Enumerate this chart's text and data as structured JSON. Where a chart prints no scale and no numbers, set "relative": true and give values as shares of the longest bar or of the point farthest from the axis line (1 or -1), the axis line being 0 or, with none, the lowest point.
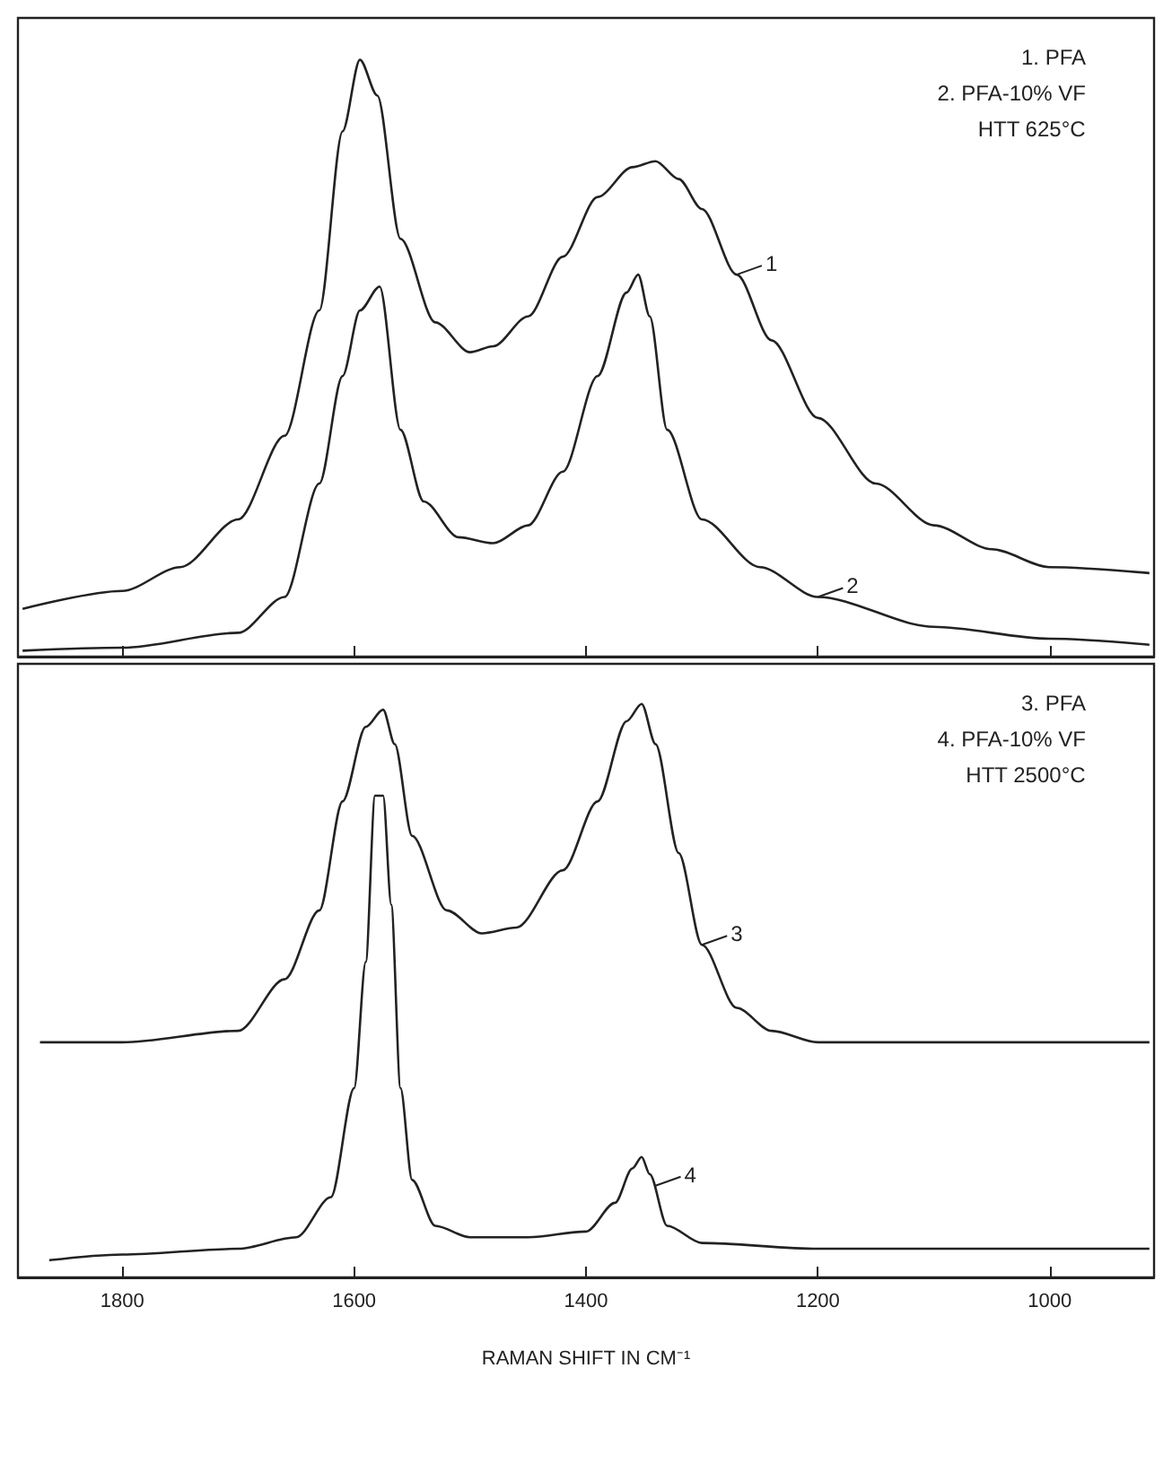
{
  "chart_data": [
    {
      "type": "line",
      "relative": true,
      "tick_labels": false,
      "grid": false,
      "marker": "none",
      "line_style": "solid",
      "xlim": [
        1890,
        910
      ],
      "xticks": [
        1800,
        1600,
        1400,
        1200,
        1000
      ],
      "annotations": [
        "1. PFA",
        "2. PFA-10% VF",
        "HTT 625°C",
        {
          "text": "1",
          "x": 1270,
          "y": 0.64
        },
        {
          "text": "2",
          "x": 1200,
          "y": 0.1
        }
      ],
      "series": [
        {
          "color": "#222222",
          "x": [
            1886,
            1800,
            1750,
            1700,
            1660,
            1630,
            1610,
            1595,
            1580,
            1560,
            1530,
            1500,
            1480,
            1450,
            1420,
            1390,
            1360,
            1340,
            1320,
            1300,
            1270,
            1240,
            1200,
            1150,
            1100,
            1050,
            1000,
            914
          ],
          "values": [
            0.08,
            0.11,
            0.15,
            0.23,
            0.37,
            0.58,
            0.88,
            1.0,
            0.94,
            0.7,
            0.56,
            0.51,
            0.52,
            0.57,
            0.67,
            0.77,
            0.82,
            0.83,
            0.8,
            0.75,
            0.64,
            0.53,
            0.4,
            0.29,
            0.22,
            0.18,
            0.15,
            0.14
          ]
        },
        {
          "color": "#222222",
          "x": [
            1886,
            1800,
            1700,
            1660,
            1630,
            1610,
            1595,
            1578,
            1560,
            1540,
            1510,
            1480,
            1450,
            1420,
            1390,
            1365,
            1355,
            1345,
            1330,
            1300,
            1250,
            1200,
            1100,
            1000,
            914
          ],
          "values": [
            0.01,
            0.015,
            0.04,
            0.1,
            0.29,
            0.47,
            0.58,
            0.62,
            0.38,
            0.26,
            0.2,
            0.19,
            0.22,
            0.31,
            0.47,
            0.61,
            0.64,
            0.57,
            0.38,
            0.23,
            0.15,
            0.1,
            0.05,
            0.03,
            0.02
          ]
        }
      ]
    },
    {
      "type": "line",
      "relative": true,
      "tick_labels": "x",
      "grid": false,
      "marker": "none",
      "line_style": "solid",
      "xlim": [
        1890,
        910
      ],
      "xticks": [
        1800,
        1600,
        1400,
        1200,
        1000
      ],
      "xlabel": "RAMAN SHIFT IN CM⁻¹",
      "annotations": [
        "3. PFA",
        "4. PFA-10% VF",
        "HTT 2500°C",
        {
          "text": "3",
          "x": 1300,
          "y": 0.58
        },
        {
          "text": "4",
          "x": 1340,
          "y": 0.16
        }
      ],
      "series": [
        {
          "color": "#222222",
          "x": [
            1871,
            1800,
            1700,
            1660,
            1630,
            1610,
            1590,
            1575,
            1565,
            1550,
            1520,
            1490,
            1460,
            1420,
            1390,
            1365,
            1352,
            1340,
            1320,
            1300,
            1270,
            1240,
            1200,
            1000,
            914
          ],
          "values": [
            0.41,
            0.41,
            0.43,
            0.52,
            0.64,
            0.83,
            0.96,
            0.99,
            0.93,
            0.77,
            0.64,
            0.6,
            0.61,
            0.71,
            0.83,
            0.97,
            1.0,
            0.93,
            0.74,
            0.58,
            0.47,
            0.43,
            0.41,
            0.41,
            0.41
          ]
        },
        {
          "color": "#222222",
          "x": [
            1863,
            1800,
            1700,
            1650,
            1620,
            1600,
            1590,
            1582,
            1575,
            1568,
            1560,
            1550,
            1530,
            1500,
            1450,
            1400,
            1375,
            1360,
            1352,
            1345,
            1330,
            1300,
            1200,
            914
          ],
          "values": [
            0.03,
            0.04,
            0.05,
            0.07,
            0.14,
            0.33,
            0.55,
            0.84,
            0.84,
            0.65,
            0.33,
            0.17,
            0.09,
            0.07,
            0.07,
            0.08,
            0.13,
            0.19,
            0.21,
            0.18,
            0.09,
            0.06,
            0.05,
            0.05
          ]
        }
      ]
    }
  ]
}
